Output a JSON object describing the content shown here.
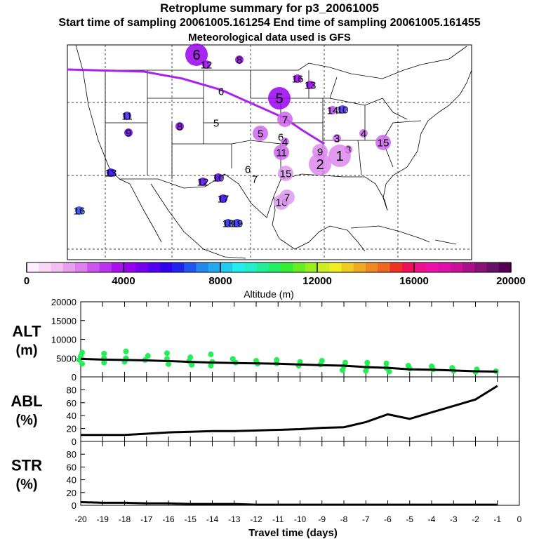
{
  "header": {
    "title": "Retroplume summary for p3_20061005",
    "sampling": "Start time of sampling 20061005.161254     End time of sampling 20061005.161455",
    "met": "Meteorological data used is GFS"
  },
  "colors": {
    "track": "#aa22ee",
    "scatter": "#22ee55",
    "line": "#000000"
  },
  "chart_data": [
    {
      "type": "map",
      "description_region": "United States and northern Mexico",
      "track_label": "retroplume centroid track",
      "markers": [
        {
          "label": "6",
          "color": "#9900ee",
          "size": "large"
        },
        {
          "label": "12",
          "color": "#9900ee",
          "size": "small"
        },
        {
          "label": "8",
          "color": "#9900ee",
          "size": "small"
        },
        {
          "label": "16",
          "color": "#9900ee",
          "size": "small"
        },
        {
          "label": "13",
          "color": "#9900ee",
          "size": "small"
        },
        {
          "label": "6",
          "color": "#000000",
          "size": "text"
        },
        {
          "label": "5",
          "color": "#9900ee",
          "size": "large"
        },
        {
          "label": "14",
          "color": "#bb44ee",
          "size": "small"
        },
        {
          "label": "10",
          "color": "#4422ee",
          "size": "small"
        },
        {
          "label": "11",
          "color": "#4422ee",
          "size": "small"
        },
        {
          "label": "9",
          "color": "#6600ee",
          "size": "small"
        },
        {
          "label": "8",
          "color": "#8800ee",
          "size": "small"
        },
        {
          "label": "5",
          "color": "#000000",
          "size": "text"
        },
        {
          "label": "7",
          "color": "#cc66ee",
          "size": "medium"
        },
        {
          "label": "5",
          "color": "#cc66ee",
          "size": "medium"
        },
        {
          "label": "6",
          "color": "#cc66ee",
          "size": "text"
        },
        {
          "label": "4",
          "color": "#cc66ee",
          "size": "small"
        },
        {
          "label": "4",
          "color": "#cc66ee",
          "size": "small"
        },
        {
          "label": "15",
          "color": "#cc66ee",
          "size": "medium"
        },
        {
          "label": "3",
          "color": "#cc66ee",
          "size": "small"
        },
        {
          "label": "3",
          "color": "#cc66ee",
          "size": "small"
        },
        {
          "label": "1",
          "color": "#dd88ee",
          "size": "large"
        },
        {
          "label": "2",
          "color": "#dd88ee",
          "size": "large"
        },
        {
          "label": "9",
          "color": "#dd88ee",
          "size": "medium"
        },
        {
          "label": "11",
          "color": "#cc66ee",
          "size": "medium"
        },
        {
          "label": "6",
          "color": "#dd88ee",
          "size": "text"
        },
        {
          "label": "7",
          "color": "#dd88ee",
          "size": "text"
        },
        {
          "label": "15",
          "color": "#dd99ee",
          "size": "medium"
        },
        {
          "label": "13",
          "color": "#2200ee",
          "size": "small"
        },
        {
          "label": "12",
          "color": "#5500ee",
          "size": "small"
        },
        {
          "label": "10",
          "color": "#5500ee",
          "size": "small"
        },
        {
          "label": "17",
          "color": "#3300ee",
          "size": "small"
        },
        {
          "label": "16",
          "color": "#dd99ee",
          "size": "medium"
        },
        {
          "label": "7",
          "color": "#dd99ee",
          "size": "medium"
        },
        {
          "label": "16",
          "color": "#2244ee",
          "size": "small"
        },
        {
          "label": "18",
          "color": "#2222ee",
          "size": "small"
        },
        {
          "label": "19",
          "color": "#2222ee",
          "size": "small"
        }
      ]
    },
    {
      "type": "colorbar",
      "xlabel": "Altitude (m)",
      "range": [
        0,
        20000
      ],
      "tick_labels": [
        "0",
        "4000",
        "8000",
        "12000",
        "16000",
        "20000"
      ],
      "colors": [
        "#ffeeff",
        "#f8d8f8",
        "#f0c0f0",
        "#e8a0ee",
        "#dd80ee",
        "#cc55ee",
        "#bb33ee",
        "#aa11ee",
        "#9900ee",
        "#7700ee",
        "#5500ee",
        "#3300ee",
        "#2222ee",
        "#2255ee",
        "#2288ee",
        "#22aaee",
        "#22ccee",
        "#22eeee",
        "#22eecc",
        "#22ee99",
        "#22ee66",
        "#33ee33",
        "#66ee22",
        "#99ee22",
        "#ccee22",
        "#eeee22",
        "#eecc22",
        "#eeaa22",
        "#ee8822",
        "#ee6622",
        "#ee3322",
        "#ee1155",
        "#ee1188",
        "#ee11aa",
        "#dd11aa",
        "#cc1199",
        "#aa1188",
        "#881177",
        "#661166",
        "#550055"
      ]
    },
    {
      "type": "line+scatter",
      "ylabel": "ALT\n(m)",
      "ylabel_top": "ALT",
      "ylabel_bottom": "(m)",
      "ylim": [
        0,
        20000
      ],
      "yticks": [
        "0",
        "5000",
        "10000",
        "15000",
        "20000"
      ],
      "x": [
        -20,
        -19,
        -18,
        -17,
        -16,
        -15,
        -14,
        -13,
        -12,
        -11,
        -10,
        -9,
        -8,
        -7,
        -6,
        -5,
        -4,
        -3,
        -2,
        -1
      ],
      "values": [
        4800,
        4600,
        4500,
        4400,
        4200,
        4000,
        3800,
        3700,
        3600,
        3500,
        3300,
        3100,
        3000,
        2600,
        2400,
        2000,
        1900,
        1700,
        1500,
        1400
      ],
      "scatter_points": [
        [
          -20,
          6500
        ],
        [
          -20,
          5500
        ],
        [
          -20,
          4500
        ],
        [
          -20,
          3500
        ],
        [
          -19,
          6200
        ],
        [
          -19,
          5000
        ],
        [
          -19,
          3800
        ],
        [
          -18,
          6800
        ],
        [
          -18,
          5000
        ],
        [
          -18,
          4000
        ],
        [
          -17,
          5600
        ],
        [
          -17,
          4500
        ],
        [
          -16,
          6300
        ],
        [
          -16,
          4800
        ],
        [
          -16,
          3400
        ],
        [
          -15,
          5200
        ],
        [
          -15,
          4200
        ],
        [
          -15,
          3200
        ],
        [
          -14,
          6000
        ],
        [
          -14,
          4000
        ],
        [
          -14,
          3000
        ],
        [
          -13,
          4800
        ],
        [
          -13,
          3800
        ],
        [
          -12,
          4300
        ],
        [
          -12,
          3500
        ],
        [
          -11,
          4500
        ],
        [
          -11,
          3600
        ],
        [
          -10,
          4000
        ],
        [
          -10,
          3000
        ],
        [
          -9,
          4300
        ],
        [
          -9,
          3300
        ],
        [
          -8,
          3800
        ],
        [
          -8,
          2800
        ],
        [
          -8,
          1800
        ],
        [
          -7,
          3800
        ],
        [
          -7,
          2600
        ],
        [
          -7,
          1600
        ],
        [
          -6,
          3600
        ],
        [
          -6,
          2400
        ],
        [
          -6,
          1400
        ],
        [
          -5,
          3000
        ],
        [
          -5,
          2200
        ],
        [
          -4,
          2800
        ],
        [
          -4,
          2000
        ],
        [
          -3,
          2400
        ],
        [
          -3,
          1600
        ],
        [
          -2,
          2000
        ],
        [
          -2,
          1300
        ],
        [
          -1,
          1500
        ]
      ]
    },
    {
      "type": "line",
      "ylabel_top": "ABL",
      "ylabel_bottom": "(%)",
      "ylim": [
        0,
        100
      ],
      "yticks": [
        "0",
        "20",
        "40",
        "60",
        "80"
      ],
      "x": [
        -20,
        -19,
        -18,
        -17,
        -16,
        -15,
        -14,
        -13,
        -12,
        -11,
        -10,
        -9,
        -8,
        -7,
        -6,
        -5,
        -4,
        -3,
        -2,
        -1
      ],
      "values": [
        10,
        10,
        10,
        12,
        14,
        15,
        16,
        16,
        17,
        18,
        19,
        21,
        22,
        30,
        42,
        35,
        45,
        55,
        65,
        86
      ]
    },
    {
      "type": "line",
      "ylabel_top": "STR",
      "ylabel_bottom": "(%)",
      "ylim": [
        0,
        100
      ],
      "yticks": [
        "0",
        "20",
        "40",
        "60",
        "80"
      ],
      "x": [
        -20,
        -19,
        -18,
        -17,
        -16,
        -15,
        -14,
        -13,
        -12,
        -11,
        -10,
        -9,
        -8,
        -7,
        -6,
        -5,
        -4,
        -3,
        -2,
        -1
      ],
      "values": [
        5,
        4,
        4,
        3,
        3,
        2,
        2,
        2,
        1,
        1,
        1,
        1,
        1,
        1,
        1,
        1,
        1,
        1,
        1,
        1
      ],
      "xlabel": "Travel time (days)",
      "xlim": [
        -20,
        0
      ],
      "xticks": [
        "-20",
        "-19",
        "-18",
        "-17",
        "-16",
        "-15",
        "-14",
        "-13",
        "-12",
        "-11",
        "-10",
        "-9",
        "-8",
        "-7",
        "-6",
        "-5",
        "-4",
        "-3",
        "-2",
        "-1",
        "0"
      ]
    }
  ]
}
